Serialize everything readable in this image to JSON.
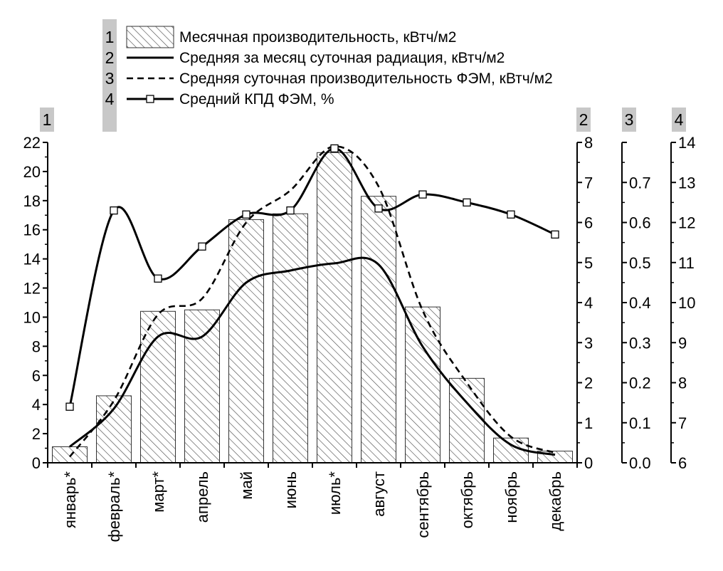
{
  "chart_data": {
    "type": "bar",
    "categories": [
      "январь*",
      "февраль*",
      "март*",
      "апрель",
      "май",
      "июнь",
      "июль*",
      "август",
      "сентябрь",
      "октябрь",
      "ноябрь",
      "декабрь"
    ],
    "series": [
      {
        "id": "1",
        "name": "Месячная производительность, кВтч/м2",
        "kind": "bar",
        "axis": "1",
        "values": [
          1.1,
          4.6,
          10.4,
          10.5,
          16.7,
          17.1,
          21.3,
          18.3,
          10.7,
          5.8,
          1.7,
          0.8
        ]
      },
      {
        "id": "2",
        "name": "Средняя за месяц суточная  радиация, кВтч/м2",
        "kind": "line-solid",
        "axis": "2",
        "values": [
          0.4,
          1.35,
          3.15,
          3.15,
          4.5,
          4.8,
          4.98,
          4.95,
          2.9,
          1.5,
          0.45,
          0.2
        ]
      },
      {
        "id": "3",
        "name": "Средняя суточная производительность ФЭМ, кВтч/м2",
        "kind": "line-dashed",
        "axis": "3",
        "values": [
          0.015,
          0.155,
          0.37,
          0.41,
          0.6,
          0.68,
          0.79,
          0.69,
          0.38,
          0.2,
          0.065,
          0.025
        ]
      },
      {
        "id": "4",
        "name": "Средний КПД ФЭМ, %",
        "kind": "line-marker",
        "axis": "4",
        "values": [
          7.4,
          12.3,
          10.6,
          11.4,
          12.2,
          12.3,
          13.85,
          12.35,
          12.7,
          12.5,
          12.2,
          11.7
        ]
      }
    ],
    "axes": [
      {
        "id": "1",
        "label": "1",
        "side": "left",
        "min": 0,
        "max": 22,
        "step": 2,
        "decimals": 0
      },
      {
        "id": "2",
        "label": "2",
        "side": "right",
        "min": 0,
        "max": 8,
        "step": 1,
        "decimals": 0
      },
      {
        "id": "3",
        "label": "3",
        "side": "right",
        "min": 0,
        "max": 0.8,
        "step": 0.1,
        "decimals": 1,
        "ticks_shown": [
          0.0,
          0.1,
          0.2,
          0.3,
          0.4,
          0.5,
          0.6,
          0.7
        ]
      },
      {
        "id": "4",
        "label": "4",
        "side": "right",
        "min": 6,
        "max": 14,
        "step": 1,
        "decimals": 0
      }
    ],
    "legend": {
      "placement": "top",
      "items": [
        {
          "number": "1",
          "text": "Месячная производительность, кВтч/м2"
        },
        {
          "number": "2",
          "text": "Средняя за месяц суточная  радиация, кВтч/м2"
        },
        {
          "number": "3",
          "text": "Средняя суточная производительность ФЭМ, кВтч/м2"
        },
        {
          "number": "4",
          "text": "Средний КПД ФЭМ, %"
        }
      ]
    },
    "grid": false
  }
}
